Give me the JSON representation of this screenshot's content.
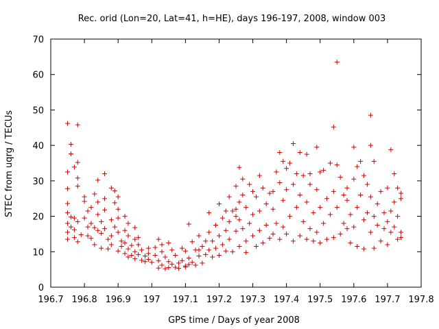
{
  "chart_data": {
    "type": "scatter",
    "title": "Rec. orid (Lon=20, Lat=41, h=HE), days 196-197, 2008, window 003",
    "xlabel": "GPS time / Days of year 2008",
    "ylabel": "STEC from uqrg / TECUs",
    "xlim": [
      196.7,
      197.8
    ],
    "ylim": [
      0,
      70
    ],
    "xticks": [
      "196.7",
      "196.8",
      "196.9",
      "197",
      "197.1",
      "197.2",
      "197.3",
      "197.4",
      "197.5",
      "197.6",
      "197.7",
      "197.8"
    ],
    "yticks": [
      "0",
      "10",
      "20",
      "30",
      "40",
      "50",
      "60",
      "70"
    ],
    "grid": false,
    "legend": "none",
    "marker": "+",
    "color": "#cc0000",
    "series": [
      {
        "name": "STEC",
        "points": [
          [
            196.75,
            46.2
          ],
          [
            196.78,
            45.8
          ],
          [
            196.76,
            40.3
          ],
          [
            196.76,
            37.6
          ],
          [
            196.75,
            32.5
          ],
          [
            196.77,
            33.9
          ],
          [
            196.78,
            35.2
          ],
          [
            196.75,
            27.8
          ],
          [
            196.78,
            30.8
          ],
          [
            196.75,
            23.6
          ],
          [
            196.78,
            28.5
          ],
          [
            196.75,
            21.0
          ],
          [
            196.76,
            19.8
          ],
          [
            196.77,
            19.5
          ],
          [
            196.75,
            18.0
          ],
          [
            196.76,
            17.0
          ],
          [
            196.78,
            18.5
          ],
          [
            196.75,
            15.5
          ],
          [
            196.77,
            16.2
          ],
          [
            196.75,
            13.5
          ],
          [
            196.77,
            14.0
          ],
          [
            196.79,
            14.8
          ],
          [
            196.78,
            12.8
          ],
          [
            196.8,
            25.5
          ],
          [
            196.8,
            24.2
          ],
          [
            196.81,
            21.5
          ],
          [
            196.8,
            19.5
          ],
          [
            196.81,
            17.0
          ],
          [
            196.81,
            14.5
          ],
          [
            196.82,
            22.5
          ],
          [
            196.82,
            18.0
          ],
          [
            196.83,
            26.3
          ],
          [
            196.82,
            13.8
          ],
          [
            196.83,
            16.8
          ],
          [
            196.83,
            12.0
          ],
          [
            196.84,
            30.2
          ],
          [
            196.84,
            24.0
          ],
          [
            196.84,
            20.5
          ],
          [
            196.85,
            18.5
          ],
          [
            196.85,
            15.2
          ],
          [
            196.85,
            11.0
          ],
          [
            196.86,
            32.0
          ],
          [
            196.86,
            25.0
          ],
          [
            196.86,
            21.8
          ],
          [
            196.86,
            16.5
          ],
          [
            196.87,
            13.5
          ],
          [
            196.87,
            10.8
          ],
          [
            196.88,
            19.0
          ],
          [
            196.88,
            14.5
          ],
          [
            196.88,
            12.0
          ],
          [
            196.88,
            28.0
          ],
          [
            196.89,
            27.2
          ],
          [
            196.89,
            23.8
          ],
          [
            196.9,
            25.5
          ],
          [
            196.9,
            22.0
          ],
          [
            196.9,
            19.5
          ],
          [
            196.89,
            17.0
          ],
          [
            196.9,
            15.5
          ],
          [
            196.91,
            13.0
          ],
          [
            196.91,
            11.5
          ],
          [
            196.9,
            10.2
          ],
          [
            196.92,
            9.5
          ],
          [
            196.92,
            12.5
          ],
          [
            196.92,
            16.0
          ],
          [
            196.93,
            18.0
          ],
          [
            196.93,
            14.5
          ],
          [
            196.93,
            10.8
          ],
          [
            196.93,
            8.5
          ],
          [
            196.94,
            11.8
          ],
          [
            196.94,
            9.0
          ],
          [
            196.95,
            13.5
          ],
          [
            196.95,
            10.0
          ],
          [
            196.95,
            8.0
          ],
          [
            196.96,
            12.0
          ],
          [
            196.96,
            9.2
          ],
          [
            196.97,
            7.6
          ],
          [
            196.97,
            10.5
          ],
          [
            196.98,
            8.8
          ],
          [
            196.98,
            7.2
          ],
          [
            196.99,
            11.0
          ],
          [
            196.99,
            7.8
          ],
          [
            197.0,
            7.0
          ],
          [
            196.99,
            9.5
          ],
          [
            196.95,
            16.8
          ],
          [
            196.96,
            14.0
          ],
          [
            197.01,
            11.2
          ],
          [
            197.01,
            9.0
          ],
          [
            197.02,
            13.5
          ],
          [
            197.02,
            7.5
          ],
          [
            197.02,
            5.4
          ],
          [
            197.03,
            10.0
          ],
          [
            197.03,
            6.2
          ],
          [
            197.04,
            8.5
          ],
          [
            197.04,
            5.2
          ],
          [
            197.05,
            12.5
          ],
          [
            197.05,
            7.2
          ],
          [
            197.05,
            5.5
          ],
          [
            197.06,
            10.5
          ],
          [
            197.06,
            6.5
          ],
          [
            197.07,
            9.0
          ],
          [
            197.07,
            5.6
          ],
          [
            197.08,
            6.8
          ],
          [
            197.08,
            5.3
          ],
          [
            197.09,
            11.0
          ],
          [
            197.09,
            7.5
          ],
          [
            197.1,
            10.2
          ],
          [
            197.1,
            6.0
          ],
          [
            197.1,
            5.7
          ],
          [
            197.11,
            17.8
          ],
          [
            197.11,
            8.2
          ],
          [
            197.11,
            6.4
          ],
          [
            197.12,
            12.8
          ],
          [
            197.12,
            7.0
          ],
          [
            197.13,
            10.5
          ],
          [
            197.13,
            6.2
          ],
          [
            197.14,
            14.5
          ],
          [
            197.14,
            8.8
          ],
          [
            197.15,
            11.5
          ],
          [
            197.15,
            6.8
          ],
          [
            197.16,
            13.0
          ],
          [
            197.16,
            9.2
          ],
          [
            197.17,
            21.0
          ],
          [
            197.17,
            15.5
          ],
          [
            197.17,
            10.5
          ],
          [
            197.18,
            13.0
          ],
          [
            197.18,
            8.5
          ],
          [
            197.19,
            17.5
          ],
          [
            197.19,
            11.0
          ],
          [
            197.2,
            23.5
          ],
          [
            197.2,
            14.5
          ],
          [
            197.2,
            9.0
          ],
          [
            197.21,
            19.5
          ],
          [
            197.21,
            12.0
          ],
          [
            197.22,
            21.5
          ],
          [
            197.22,
            16.0
          ],
          [
            197.22,
            10.2
          ],
          [
            197.23,
            25.5
          ],
          [
            197.23,
            18.5
          ],
          [
            197.23,
            13.5
          ],
          [
            197.24,
            21.5
          ],
          [
            197.24,
            10.0
          ],
          [
            197.25,
            28.5
          ],
          [
            197.25,
            22.0
          ],
          [
            197.25,
            15.8
          ],
          [
            197.26,
            33.8
          ],
          [
            197.26,
            24.0
          ],
          [
            197.26,
            19.0
          ],
          [
            197.26,
            11.5
          ],
          [
            197.27,
            30.5
          ],
          [
            197.27,
            26.0
          ],
          [
            197.27,
            16.5
          ],
          [
            197.28,
            22.5
          ],
          [
            197.28,
            13.0
          ],
          [
            197.28,
            9.8
          ],
          [
            197.29,
            29.0
          ],
          [
            197.29,
            18.0
          ],
          [
            197.3,
            27.0
          ],
          [
            197.3,
            20.5
          ],
          [
            197.3,
            14.5
          ],
          [
            197.31,
            25.5
          ],
          [
            197.31,
            11.5
          ],
          [
            197.32,
            31.5
          ],
          [
            197.32,
            21.5
          ],
          [
            197.32,
            16.0
          ],
          [
            197.33,
            28.0
          ],
          [
            197.33,
            12.5
          ],
          [
            197.34,
            23.5
          ],
          [
            197.34,
            17.5
          ],
          [
            197.35,
            26.5
          ],
          [
            197.35,
            13.8
          ],
          [
            197.36,
            22.0
          ],
          [
            197.36,
            15.0
          ],
          [
            197.37,
            32.5
          ],
          [
            197.37,
            18.0
          ],
          [
            197.38,
            38.0
          ],
          [
            197.38,
            29.5
          ],
          [
            197.38,
            13.5
          ],
          [
            197.39,
            35.5
          ],
          [
            197.39,
            24.5
          ],
          [
            197.39,
            17.0
          ],
          [
            197.4,
            33.5
          ],
          [
            197.4,
            27.5
          ],
          [
            197.4,
            15.0
          ],
          [
            197.41,
            35.0
          ],
          [
            197.41,
            20.0
          ],
          [
            197.42,
            40.5
          ],
          [
            197.42,
            29.0
          ],
          [
            197.42,
            13.0
          ],
          [
            197.43,
            32.0
          ],
          [
            197.43,
            22.5
          ],
          [
            197.44,
            38.0
          ],
          [
            197.44,
            26.0
          ],
          [
            197.44,
            14.5
          ],
          [
            197.45,
            31.5
          ],
          [
            197.45,
            18.5
          ],
          [
            197.46,
            37.5
          ],
          [
            197.46,
            24.0
          ],
          [
            197.46,
            13.5
          ],
          [
            197.47,
            29.0
          ],
          [
            197.47,
            16.5
          ],
          [
            197.48,
            21.0
          ],
          [
            197.48,
            13.0
          ],
          [
            197.49,
            39.5
          ],
          [
            197.49,
            27.5
          ],
          [
            197.49,
            15.5
          ],
          [
            197.5,
            32.5
          ],
          [
            197.5,
            22.5
          ],
          [
            197.5,
            12.5
          ],
          [
            197.51,
            33.0
          ],
          [
            197.51,
            18.0
          ],
          [
            197.52,
            25.0
          ],
          [
            197.52,
            13.5
          ],
          [
            197.53,
            35.0
          ],
          [
            197.53,
            20.5
          ],
          [
            197.54,
            45.2
          ],
          [
            197.54,
            27.0
          ],
          [
            197.54,
            14.0
          ],
          [
            197.55,
            63.5
          ],
          [
            197.55,
            34.5
          ],
          [
            197.55,
            22.5
          ],
          [
            197.56,
            31.0
          ],
          [
            197.56,
            15.0
          ],
          [
            197.57,
            26.0
          ],
          [
            197.57,
            18.0
          ],
          [
            197.58,
            28.0
          ],
          [
            197.58,
            16.5
          ],
          [
            197.59,
            20.5
          ],
          [
            197.59,
            12.5
          ],
          [
            197.6,
            39.5
          ],
          [
            197.6,
            30.5
          ],
          [
            197.6,
            17.0
          ],
          [
            197.61,
            34.0
          ],
          [
            197.61,
            22.5
          ],
          [
            197.61,
            11.5
          ],
          [
            197.62,
            35.5
          ],
          [
            197.62,
            26.0
          ],
          [
            197.63,
            31.5
          ],
          [
            197.63,
            19.0
          ],
          [
            197.63,
            10.8
          ],
          [
            197.64,
            29.0
          ],
          [
            197.64,
            21.0
          ],
          [
            197.65,
            48.5
          ],
          [
            197.65,
            40.0
          ],
          [
            197.65,
            25.5
          ],
          [
            197.65,
            15.5
          ],
          [
            197.66,
            35.5
          ],
          [
            197.66,
            20.0
          ],
          [
            197.66,
            11.0
          ],
          [
            197.67,
            23.5
          ],
          [
            197.67,
            17.5
          ],
          [
            197.68,
            27.0
          ],
          [
            197.68,
            13.0
          ],
          [
            197.69,
            21.0
          ],
          [
            197.69,
            16.5
          ],
          [
            197.7,
            18.5
          ],
          [
            197.7,
            12.0
          ],
          [
            197.71,
            38.8
          ],
          [
            197.71,
            21.5
          ],
          [
            197.71,
            15.5
          ],
          [
            197.72,
            32.0
          ],
          [
            197.72,
            24.0
          ],
          [
            197.72,
            17.0
          ],
          [
            197.73,
            28.0
          ],
          [
            197.73,
            20.0
          ],
          [
            197.73,
            13.5
          ],
          [
            197.74,
            26.5
          ],
          [
            197.74,
            15.5
          ],
          [
            197.74,
            14.0
          ],
          [
            197.74,
            25.0
          ],
          [
            197.7,
            28.0
          ],
          [
            197.58,
            24.5
          ],
          [
            197.47,
            32.0
          ],
          [
            197.36,
            27.0
          ],
          [
            197.25,
            20.0
          ],
          [
            197.14,
            10.5
          ],
          [
            197.03,
            12.0
          ],
          [
            196.92,
            20.0
          ],
          [
            196.84,
            16.0
          ]
        ]
      }
    ]
  }
}
